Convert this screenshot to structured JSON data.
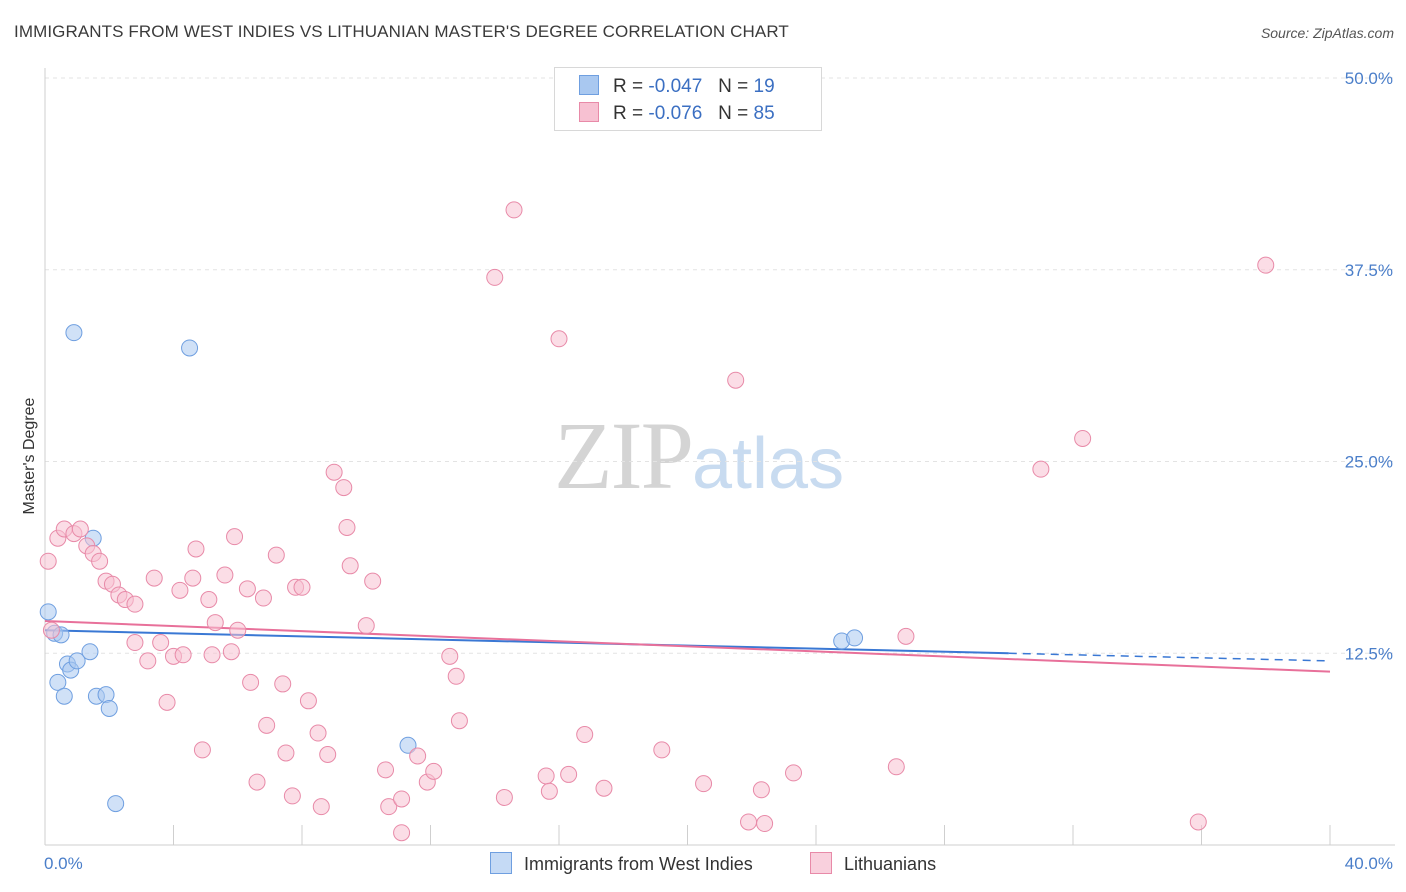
{
  "title": "IMMIGRANTS FROM WEST INDIES VS LITHUANIAN MASTER'S DEGREE CORRELATION CHART",
  "source": "Source: ZipAtlas.com",
  "watermark": {
    "zip": "ZIP",
    "atlas": "atlas"
  },
  "legend": {
    "rows": [
      {
        "r_label": "R =",
        "r_value": "-0.047",
        "n_label": "N =",
        "n_value": "19",
        "color": "#a9c8f0",
        "border": "#6f9fe0"
      },
      {
        "r_label": "R =",
        "r_value": "-0.076",
        "n_label": "N =",
        "n_value": "85",
        "color": "#f7c1d2",
        "border": "#e88aa8"
      }
    ]
  },
  "bottom_legend": [
    {
      "label": "Immigrants from West Indies",
      "color": "#c5daf5",
      "border": "#6f9fe0"
    },
    {
      "label": "Lithuanians",
      "color": "#f9d0dd",
      "border": "#e88aa8"
    }
  ],
  "colors": {
    "blue": "#3a78d4",
    "pink": "#e8709a",
    "axis_text": "#4a7ec9"
  },
  "chart_data": {
    "type": "scatter",
    "xlabel": "",
    "ylabel": "Master's Degree",
    "xlim": [
      0,
      40
    ],
    "ylim": [
      0,
      50
    ],
    "x_tick_labels": [
      "0.0%",
      "40.0%"
    ],
    "y_ticks": [
      12.5,
      25.0,
      37.5,
      50.0
    ],
    "y_tick_labels": [
      "12.5%",
      "25.0%",
      "37.5%",
      "50.0%"
    ],
    "grid": true,
    "series": [
      {
        "name": "Immigrants from West Indies",
        "color": "#a9c8f0",
        "stroke": "#6f9fe0",
        "points": [
          [
            0.1,
            15.2
          ],
          [
            0.3,
            13.8
          ],
          [
            0.4,
            10.6
          ],
          [
            0.5,
            13.7
          ],
          [
            0.6,
            9.7
          ],
          [
            0.7,
            11.8
          ],
          [
            0.8,
            11.4
          ],
          [
            1.0,
            12.0
          ],
          [
            1.4,
            12.6
          ],
          [
            1.5,
            20.0
          ],
          [
            1.6,
            9.7
          ],
          [
            1.9,
            9.8
          ],
          [
            2.0,
            8.9
          ],
          [
            2.2,
            2.7
          ],
          [
            0.9,
            33.4
          ],
          [
            4.5,
            32.4
          ],
          [
            11.3,
            6.5
          ],
          [
            24.8,
            13.3
          ],
          [
            25.2,
            13.5
          ]
        ],
        "trend": {
          "x0": 0,
          "y0": 14.0,
          "x1": 30,
          "y1": 12.5,
          "dash_to": 40,
          "dash_y": 12.0
        }
      },
      {
        "name": "Lithuanians",
        "color": "#f7c1d2",
        "stroke": "#e88aa8",
        "points": [
          [
            0.1,
            18.5
          ],
          [
            0.2,
            14.0
          ],
          [
            0.4,
            20.0
          ],
          [
            0.6,
            20.6
          ],
          [
            0.9,
            20.3
          ],
          [
            1.1,
            20.6
          ],
          [
            1.3,
            19.5
          ],
          [
            1.5,
            19.0
          ],
          [
            1.7,
            18.5
          ],
          [
            1.9,
            17.2
          ],
          [
            2.1,
            17.0
          ],
          [
            2.3,
            16.3
          ],
          [
            2.5,
            16.0
          ],
          [
            2.8,
            15.7
          ],
          [
            2.8,
            13.2
          ],
          [
            3.2,
            12.0
          ],
          [
            3.4,
            17.4
          ],
          [
            3.6,
            13.2
          ],
          [
            3.8,
            9.3
          ],
          [
            4.0,
            12.3
          ],
          [
            4.2,
            16.6
          ],
          [
            4.3,
            12.4
          ],
          [
            4.6,
            17.4
          ],
          [
            4.7,
            19.3
          ],
          [
            4.9,
            6.2
          ],
          [
            5.1,
            16.0
          ],
          [
            5.2,
            12.4
          ],
          [
            5.3,
            14.5
          ],
          [
            5.6,
            17.6
          ],
          [
            5.8,
            12.6
          ],
          [
            5.9,
            20.1
          ],
          [
            6.0,
            14.0
          ],
          [
            6.3,
            16.7
          ],
          [
            6.4,
            10.6
          ],
          [
            6.6,
            4.1
          ],
          [
            6.8,
            16.1
          ],
          [
            6.9,
            7.8
          ],
          [
            7.2,
            18.9
          ],
          [
            7.4,
            10.5
          ],
          [
            7.5,
            6.0
          ],
          [
            7.7,
            3.2
          ],
          [
            7.8,
            16.8
          ],
          [
            8.0,
            16.8
          ],
          [
            8.2,
            9.4
          ],
          [
            8.5,
            7.3
          ],
          [
            8.6,
            2.5
          ],
          [
            8.8,
            5.9
          ],
          [
            9.0,
            24.3
          ],
          [
            9.3,
            23.3
          ],
          [
            9.4,
            20.7
          ],
          [
            9.5,
            18.2
          ],
          [
            10.0,
            14.3
          ],
          [
            10.2,
            17.2
          ],
          [
            10.6,
            4.9
          ],
          [
            10.7,
            2.5
          ],
          [
            11.1,
            3.0
          ],
          [
            11.1,
            0.8
          ],
          [
            11.6,
            5.8
          ],
          [
            11.9,
            4.1
          ],
          [
            12.1,
            4.8
          ],
          [
            12.6,
            12.3
          ],
          [
            12.8,
            11.0
          ],
          [
            12.9,
            8.1
          ],
          [
            14.0,
            37.0
          ],
          [
            14.3,
            3.1
          ],
          [
            14.6,
            41.4
          ],
          [
            15.6,
            4.5
          ],
          [
            15.7,
            3.5
          ],
          [
            16.0,
            33.0
          ],
          [
            16.3,
            4.6
          ],
          [
            16.8,
            7.2
          ],
          [
            17.4,
            3.7
          ],
          [
            19.2,
            6.2
          ],
          [
            20.5,
            4.0
          ],
          [
            21.5,
            30.3
          ],
          [
            21.9,
            1.5
          ],
          [
            22.3,
            3.6
          ],
          [
            22.4,
            1.4
          ],
          [
            23.3,
            4.7
          ],
          [
            26.5,
            5.1
          ],
          [
            26.8,
            13.6
          ],
          [
            31.0,
            24.5
          ],
          [
            32.3,
            26.5
          ],
          [
            35.9,
            1.5
          ],
          [
            38.0,
            37.8
          ]
        ],
        "trend": {
          "x0": 0,
          "y0": 14.6,
          "x1": 40,
          "y1": 11.3
        }
      }
    ]
  }
}
